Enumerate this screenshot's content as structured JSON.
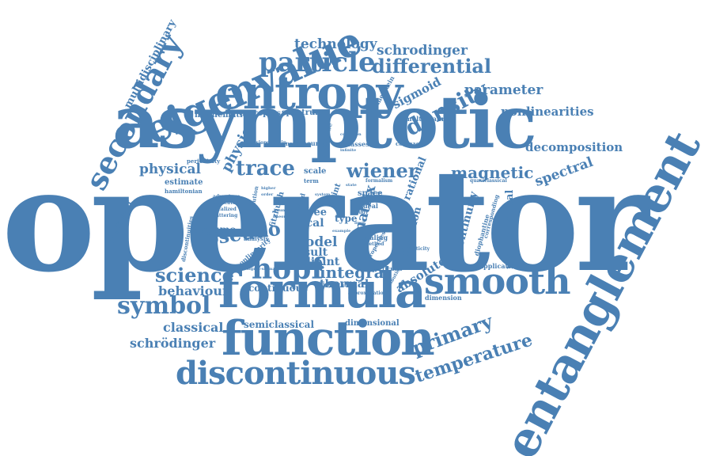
{
  "color": "#4a80b4",
  "words": {
    "operator": "operator",
    "asymptotic": "asymptotic",
    "entanglement": "entanglement",
    "formula": "formula",
    "function": "function",
    "entropy": "entropy",
    "eigenvalue": "eigenvalue",
    "smooth": "smooth",
    "discontinuous": "discontinuous",
    "secondary": "secondary",
    "particle": "particle",
    "differential": "differential",
    "technology": "technology",
    "schrodinger": "schrodinger",
    "multidisciplinary": "multidisciplinary",
    "density": "density",
    "parameter": "parameter",
    "nonlinearities": "nonlinearities",
    "sigmoid": "sigmoid",
    "mathematic": "mathematic",
    "entropies": "entropies",
    "spectrum": "spectrum",
    "multichannel": "multichannel",
    "hammerstein": "hammerstein",
    "decomposition": "decomposition",
    "spectral": "spectral",
    "magnetic": "magnetic",
    "trace": "trace",
    "wiener": "wiener",
    "physical": "physical",
    "physic": "physic",
    "estimate": "estimate",
    "hamiltonian": "hamiltonian",
    "periodicity": "periodicity",
    "coefficient": "coefficient",
    "pseudo": "pseudo",
    "nagumo": "nagumo",
    "matrix": "matrix",
    "hopf": "hopf",
    "integral": "integral",
    "science": "science",
    "behaviour": "behaviour",
    "symbol": "symbol",
    "classical": "classical",
    "schrödinger": "schrödinger",
    "semiclassical": "semiclassical",
    "dimensional": "dimensional",
    "primary": "primary",
    "temperature": "temperature",
    "absolute": "absolute",
    "equation": "equation",
    "continuity": "continuity",
    "mathematical": "mathematical",
    "rational": "rational",
    "thermal": "thermal",
    "continuous": "continuous",
    "model": "model",
    "result": "result",
    "adjoint": "adjoint",
    "local": "local",
    "free": "free",
    "type": "type",
    "space": "space",
    "ideal": "ideal",
    "scale": "scale",
    "classes": "classes",
    "compact": "compact",
    "neural": "neural",
    "constant": "constant",
    "application": "application",
    "dimension": "dimension",
    "particular": "particular",
    "analysis": "analysis",
    "nonlinearity": "nonlinearity",
    "discontinuities": "discontinuities",
    "fitzhugh": "fitzhugh",
    "piecewise": "piecewise",
    "point": "point",
    "field": "field",
    "study": "study",
    "scaling": "scaling",
    "method": "method",
    "properties": "properties",
    "analyticity": "analyticity",
    "distribution": "distribution",
    "logarithmic": "logarithmic",
    "approximation": "approximation",
    "diophantine": "diophantine",
    "corresponding": "corresponding",
    "truncated": "truncated",
    "localized": "localized",
    "scattering": "scattering",
    "advantage": "advantage",
    "formalism": "formalism",
    "quasiclassical": "quasiclassical",
    "condition": "condition",
    "domain": "domain",
    "version": "version",
    "theory": "theory",
    "bounded": "bounded",
    "infinite": "infinite",
    "limit": "limit",
    "term": "term",
    "state": "state",
    "system": "system",
    "case": "case",
    "sigma": "sigma-sigma",
    "example": "example",
    "solution": "solution",
    "higher": "higher",
    "order": "order"
  }
}
